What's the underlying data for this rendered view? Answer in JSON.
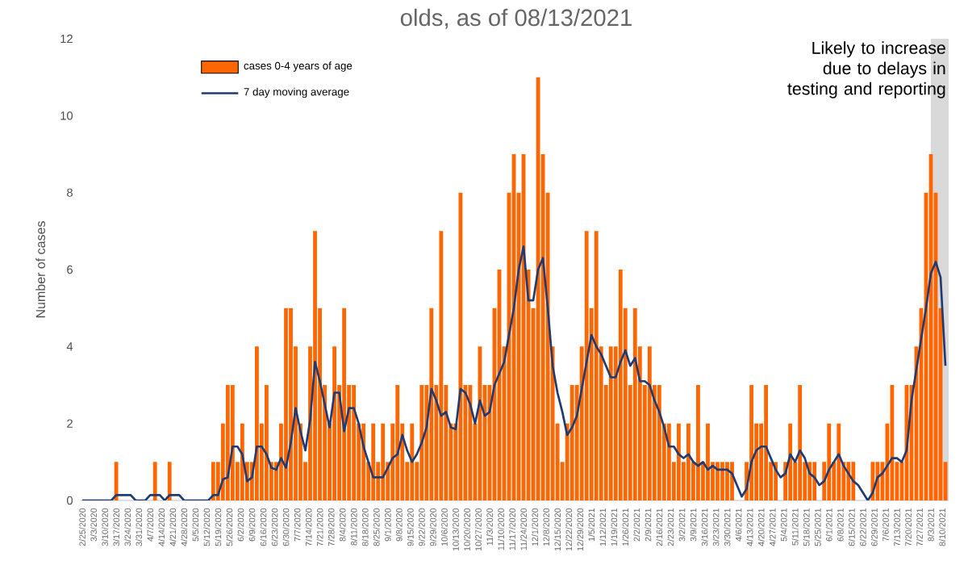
{
  "chart_data": {
    "type": "bar",
    "title": "olds, as of 08/13/2021",
    "ylabel": "Number of cases",
    "x": [
      "2020-02-25",
      "2020-02-28",
      "2020-03-02",
      "2020-03-05",
      "2020-03-08",
      "2020-03-11",
      "2020-03-14",
      "2020-03-17",
      "2020-03-20",
      "2020-03-23",
      "2020-03-26",
      "2020-03-29",
      "2020-04-01",
      "2020-04-04",
      "2020-04-07",
      "2020-04-10",
      "2020-04-13",
      "2020-04-16",
      "2020-04-19",
      "2020-04-22",
      "2020-04-25",
      "2020-04-28",
      "2020-05-01",
      "2020-05-04",
      "2020-05-07",
      "2020-05-10",
      "2020-05-13",
      "2020-05-16",
      "2020-05-19",
      "2020-05-22",
      "2020-05-25",
      "2020-05-28",
      "2020-05-31",
      "2020-06-03",
      "2020-06-06",
      "2020-06-09",
      "2020-06-12",
      "2020-06-15",
      "2020-06-18",
      "2020-06-21",
      "2020-06-24",
      "2020-06-27",
      "2020-06-30",
      "2020-07-03",
      "2020-07-06",
      "2020-07-09",
      "2020-07-12",
      "2020-07-15",
      "2020-07-18",
      "2020-07-21",
      "2020-07-24",
      "2020-07-27",
      "2020-07-30",
      "2020-08-02",
      "2020-08-05",
      "2020-08-08",
      "2020-08-11",
      "2020-08-14",
      "2020-08-17",
      "2020-08-20",
      "2020-08-23",
      "2020-08-26",
      "2020-08-29",
      "2020-09-01",
      "2020-09-04",
      "2020-09-07",
      "2020-09-10",
      "2020-09-13",
      "2020-09-16",
      "2020-09-19",
      "2020-09-22",
      "2020-09-25",
      "2020-09-28",
      "2020-10-01",
      "2020-10-04",
      "2020-10-07",
      "2020-10-10",
      "2020-10-13",
      "2020-10-16",
      "2020-10-19",
      "2020-10-22",
      "2020-10-25",
      "2020-10-28",
      "2020-10-31",
      "2020-11-03",
      "2020-11-06",
      "2020-11-09",
      "2020-11-12",
      "2020-11-15",
      "2020-11-18",
      "2020-11-21",
      "2020-11-24",
      "2020-11-27",
      "2020-11-30",
      "2020-12-03",
      "2020-12-06",
      "2020-12-09",
      "2020-12-12",
      "2020-12-15",
      "2020-12-18",
      "2020-12-21",
      "2020-12-24",
      "2020-12-27",
      "2020-12-30",
      "2021-01-02",
      "2021-01-05",
      "2021-01-08",
      "2021-01-11",
      "2021-01-14",
      "2021-01-17",
      "2021-01-20",
      "2021-01-23",
      "2021-01-26",
      "2021-01-29",
      "2021-02-01",
      "2021-02-04",
      "2021-02-07",
      "2021-02-10",
      "2021-02-13",
      "2021-02-16",
      "2021-02-19",
      "2021-02-22",
      "2021-02-25",
      "2021-02-28",
      "2021-03-03",
      "2021-03-06",
      "2021-03-09",
      "2021-03-12",
      "2021-03-15",
      "2021-03-18",
      "2021-03-21",
      "2021-03-24",
      "2021-03-27",
      "2021-03-30",
      "2021-04-02",
      "2021-04-05",
      "2021-04-08",
      "2021-04-11",
      "2021-04-14",
      "2021-04-17",
      "2021-04-20",
      "2021-04-23",
      "2021-04-26",
      "2021-04-29",
      "2021-05-02",
      "2021-05-05",
      "2021-05-08",
      "2021-05-11",
      "2021-05-14",
      "2021-05-17",
      "2021-05-20",
      "2021-05-23",
      "2021-05-26",
      "2021-05-29",
      "2021-06-01",
      "2021-06-04",
      "2021-06-07",
      "2021-06-10",
      "2021-06-13",
      "2021-06-16",
      "2021-06-19",
      "2021-06-22",
      "2021-06-25",
      "2021-06-28",
      "2021-07-01",
      "2021-07-04",
      "2021-07-07",
      "2021-07-10",
      "2021-07-13",
      "2021-07-16",
      "2021-07-19",
      "2021-07-22",
      "2021-07-25",
      "2021-07-28",
      "2021-07-31",
      "2021-08-03",
      "2021-08-06",
      "2021-08-09",
      "2021-08-12"
    ],
    "series": [
      {
        "name": "cases 0-4 years of age",
        "color": "#ff6600",
        "values": [
          0,
          0,
          0,
          0,
          0,
          0,
          0,
          1,
          0,
          0,
          0,
          0,
          0,
          0,
          0,
          1,
          0,
          0,
          1,
          0,
          0,
          0,
          0,
          0,
          0,
          0,
          0,
          1,
          1,
          2,
          3,
          3,
          1,
          2,
          1,
          1,
          4,
          2,
          3,
          1,
          1,
          2,
          5,
          5,
          4,
          2,
          1,
          4,
          7,
          5,
          3,
          2,
          4,
          3,
          5,
          3,
          3,
          2,
          2,
          1,
          2,
          1,
          2,
          1,
          2,
          3,
          2,
          1,
          2,
          1,
          3,
          3,
          5,
          3,
          7,
          3,
          2,
          2,
          8,
          3,
          3,
          2,
          4,
          3,
          3,
          5,
          6,
          4,
          8,
          9,
          8,
          9,
          6,
          5,
          11,
          9,
          8,
          4,
          2,
          1,
          2,
          3,
          3,
          4,
          7,
          5,
          7,
          4,
          3,
          4,
          4,
          6,
          5,
          3,
          5,
          4,
          3,
          4,
          3,
          3,
          2,
          2,
          1,
          2,
          1,
          2,
          1,
          3,
          1,
          2,
          1,
          1,
          1,
          1,
          1,
          0,
          0,
          1,
          3,
          2,
          2,
          3,
          1,
          1,
          0,
          1,
          2,
          1,
          3,
          1,
          1,
          1,
          0,
          1,
          2,
          1,
          2,
          1,
          1,
          1,
          0,
          0,
          0,
          1,
          1,
          1,
          2,
          3,
          1,
          1,
          3,
          3,
          4,
          5,
          8,
          9,
          8,
          5,
          1
        ]
      },
      {
        "name": "7 day moving average",
        "type": "line",
        "color": "#1f3b73",
        "values": [
          0,
          0,
          0,
          0,
          0,
          0,
          0,
          0.14,
          0.14,
          0.14,
          0.14,
          0,
          0,
          0,
          0.14,
          0.14,
          0.14,
          0,
          0.14,
          0.14,
          0.14,
          0,
          0,
          0,
          0,
          0,
          0,
          0.14,
          0.14,
          0.55,
          0.6,
          1.4,
          1.4,
          1.2,
          0.5,
          0.6,
          1.4,
          1.4,
          1.2,
          0.85,
          0.8,
          1.1,
          0.85,
          1.5,
          2.4,
          1.8,
          1.3,
          2.1,
          3.6,
          3.1,
          2.5,
          1.9,
          2.8,
          2.8,
          1.8,
          2.4,
          2.4,
          2.0,
          1.4,
          1.0,
          0.6,
          0.6,
          0.6,
          0.85,
          1.1,
          1.2,
          1.7,
          1.3,
          1.0,
          1.2,
          1.5,
          1.9,
          2.9,
          2.6,
          2.2,
          2.3,
          1.9,
          1.85,
          2.9,
          2.8,
          2.5,
          2.0,
          2.6,
          2.2,
          2.3,
          3.0,
          3.3,
          3.6,
          4.3,
          5.0,
          6.0,
          6.6,
          5.2,
          5.2,
          6.0,
          6.3,
          5.0,
          3.5,
          2.8,
          2.3,
          1.7,
          1.9,
          2.2,
          2.9,
          3.6,
          4.3,
          4.0,
          3.8,
          3.5,
          3.2,
          3.2,
          3.6,
          3.9,
          3.5,
          3.7,
          3.1,
          3.1,
          3.0,
          2.6,
          2.3,
          1.9,
          1.4,
          1.4,
          1.2,
          1.1,
          1.2,
          1.0,
          0.9,
          1.0,
          0.8,
          0.9,
          0.8,
          0.8,
          0.8,
          0.7,
          0.4,
          0.1,
          0.3,
          1.0,
          1.3,
          1.4,
          1.4,
          1.1,
          0.8,
          0.6,
          0.7,
          1.2,
          1.0,
          1.3,
          1.1,
          0.7,
          0.6,
          0.4,
          0.5,
          0.8,
          1.0,
          1.2,
          0.9,
          0.7,
          0.5,
          0.4,
          0.2,
          0,
          0.2,
          0.6,
          0.7,
          0.9,
          1.1,
          1.1,
          1.0,
          1.3,
          2.6,
          3.4,
          4.2,
          5.0,
          5.9,
          6.2,
          5.8,
          3.5
        ]
      }
    ],
    "xlim": [
      "2020-02-24",
      "2021-08-14"
    ],
    "ylim": [
      0,
      12
    ],
    "yticks": [
      0,
      2,
      4,
      6,
      8,
      10,
      12
    ],
    "xticks": [
      {
        "value": "2020-02-25",
        "label": "2/25/2020"
      },
      {
        "value": "2020-03-03",
        "label": "3/3/2020"
      },
      {
        "value": "2020-03-10",
        "label": "3/10/2020"
      },
      {
        "value": "2020-03-17",
        "label": "3/17/2020"
      },
      {
        "value": "2020-03-24",
        "label": "3/24/2020"
      },
      {
        "value": "2020-03-31",
        "label": "3/31/2020"
      },
      {
        "value": "2020-04-07",
        "label": "4/7/2020"
      },
      {
        "value": "2020-04-14",
        "label": "4/14/2020"
      },
      {
        "value": "2020-04-21",
        "label": "4/21/2020"
      },
      {
        "value": "2020-04-28",
        "label": "4/28/2020"
      },
      {
        "value": "2020-05-05",
        "label": "5/5/2020"
      },
      {
        "value": "2020-05-12",
        "label": "5/12/2020"
      },
      {
        "value": "2020-05-19",
        "label": "5/19/2020"
      },
      {
        "value": "2020-05-26",
        "label": "5/26/2020"
      },
      {
        "value": "2020-06-02",
        "label": "6/2/2020"
      },
      {
        "value": "2020-06-09",
        "label": "6/9/2020"
      },
      {
        "value": "2020-06-16",
        "label": "6/16/2020"
      },
      {
        "value": "2020-06-23",
        "label": "6/23/2020"
      },
      {
        "value": "2020-06-30",
        "label": "6/30/2020"
      },
      {
        "value": "2020-07-07",
        "label": "7/7/2020"
      },
      {
        "value": "2020-07-14",
        "label": "7/14/2020"
      },
      {
        "value": "2020-07-21",
        "label": "7/21/2020"
      },
      {
        "value": "2020-07-28",
        "label": "7/28/2020"
      },
      {
        "value": "2020-08-04",
        "label": "8/4/2020"
      },
      {
        "value": "2020-08-11",
        "label": "8/11/2020"
      },
      {
        "value": "2020-08-18",
        "label": "8/18/2020"
      },
      {
        "value": "2020-08-25",
        "label": "8/25/2020"
      },
      {
        "value": "2020-09-01",
        "label": "9/1/2020"
      },
      {
        "value": "2020-09-08",
        "label": "9/8/2020"
      },
      {
        "value": "2020-09-15",
        "label": "9/15/2020"
      },
      {
        "value": "2020-09-22",
        "label": "9/22/2020"
      },
      {
        "value": "2020-09-29",
        "label": "9/29/2020"
      },
      {
        "value": "2020-10-06",
        "label": "10/6/2020"
      },
      {
        "value": "2020-10-13",
        "label": "10/13/2020"
      },
      {
        "value": "2020-10-20",
        "label": "10/20/2020"
      },
      {
        "value": "2020-10-27",
        "label": "10/27/2020"
      },
      {
        "value": "2020-11-03",
        "label": "11/3/2020"
      },
      {
        "value": "2020-11-10",
        "label": "11/10/2020"
      },
      {
        "value": "2020-11-17",
        "label": "11/17/2020"
      },
      {
        "value": "2020-11-24",
        "label": "11/24/2020"
      },
      {
        "value": "2020-12-01",
        "label": "12/1/2020"
      },
      {
        "value": "2020-12-08",
        "label": "12/8/2020"
      },
      {
        "value": "2020-12-15",
        "label": "12/15/2020"
      },
      {
        "value": "2020-12-22",
        "label": "12/22/2020"
      },
      {
        "value": "2020-12-29",
        "label": "12/29/2020"
      },
      {
        "value": "2021-01-05",
        "label": "1/5/2021"
      },
      {
        "value": "2021-01-12",
        "label": "1/12/2021"
      },
      {
        "value": "2021-01-19",
        "label": "1/19/2021"
      },
      {
        "value": "2021-01-26",
        "label": "1/26/2021"
      },
      {
        "value": "2021-02-02",
        "label": "2/2/2021"
      },
      {
        "value": "2021-02-09",
        "label": "2/9/2021"
      },
      {
        "value": "2021-02-16",
        "label": "2/16/2021"
      },
      {
        "value": "2021-02-23",
        "label": "2/23/2021"
      },
      {
        "value": "2021-03-02",
        "label": "3/2/2021"
      },
      {
        "value": "2021-03-09",
        "label": "3/9/2021"
      },
      {
        "value": "2021-03-16",
        "label": "3/16/2021"
      },
      {
        "value": "2021-03-23",
        "label": "3/23/2021"
      },
      {
        "value": "2021-03-30",
        "label": "3/30/2021"
      },
      {
        "value": "2021-04-06",
        "label": "4/6/2021"
      },
      {
        "value": "2021-04-13",
        "label": "4/13/2021"
      },
      {
        "value": "2021-04-20",
        "label": "4/20/2021"
      },
      {
        "value": "2021-04-27",
        "label": "4/27/2021"
      },
      {
        "value": "2021-05-04",
        "label": "5/4/2021"
      },
      {
        "value": "2021-05-11",
        "label": "5/11/2021"
      },
      {
        "value": "2021-05-18",
        "label": "5/18/2021"
      },
      {
        "value": "2021-05-25",
        "label": "5/25/2021"
      },
      {
        "value": "2021-06-01",
        "label": "6/1/2021"
      },
      {
        "value": "2021-06-08",
        "label": "6/8/2021"
      },
      {
        "value": "2021-06-15",
        "label": "6/15/2021"
      },
      {
        "value": "2021-06-22",
        "label": "6/22/2021"
      },
      {
        "value": "2021-06-29",
        "label": "6/29/2021"
      },
      {
        "value": "2021-07-06",
        "label": "7/6/2021"
      },
      {
        "value": "2021-07-13",
        "label": "7/13/2021"
      },
      {
        "value": "2021-07-20",
        "label": "7/20/2021"
      },
      {
        "value": "2021-07-27",
        "label": "7/27/2021"
      },
      {
        "value": "2021-08-03",
        "label": "8/3/2021"
      },
      {
        "value": "2021-08-10",
        "label": "8/10/2021"
      }
    ],
    "bands": [
      {
        "axis": "x",
        "from": "2021-08-03",
        "to": "2021-08-14",
        "color": "#d9d9d9",
        "label": "Likely to increase due to delays in testing and reporting"
      }
    ],
    "legend": "top left",
    "grid": false
  }
}
